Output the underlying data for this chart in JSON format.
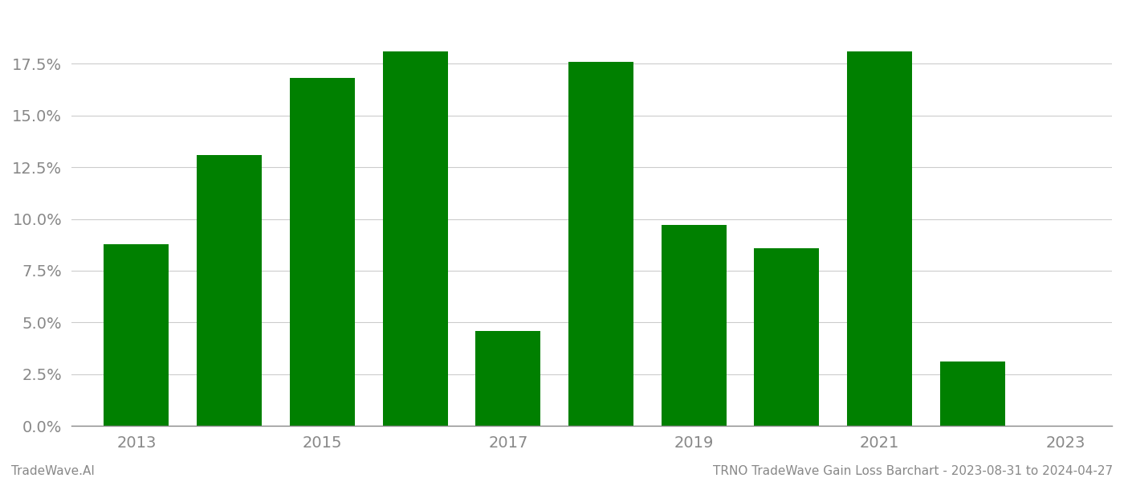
{
  "years": [
    2013,
    2014,
    2015,
    2016,
    2017,
    2018,
    2019,
    2020,
    2021,
    2022
  ],
  "values": [
    0.088,
    0.131,
    0.168,
    0.181,
    0.046,
    0.176,
    0.097,
    0.086,
    0.181,
    0.031
  ],
  "bar_color": "#008000",
  "background_color": "#ffffff",
  "grid_color": "#cccccc",
  "xlim": [
    2012.3,
    2023.5
  ],
  "ylim": [
    0,
    0.2
  ],
  "yticks": [
    0.0,
    0.025,
    0.05,
    0.075,
    0.1,
    0.125,
    0.15,
    0.175
  ],
  "xticks": [
    2013,
    2015,
    2017,
    2019,
    2021,
    2023
  ],
  "bar_width": 0.7,
  "xlabel_fontsize": 14,
  "ylabel_fontsize": 14,
  "tick_color": "#888888",
  "footer_left": "TradeWave.AI",
  "footer_right": "TRNO TradeWave Gain Loss Barchart - 2023-08-31 to 2024-04-27",
  "footer_fontsize": 11
}
